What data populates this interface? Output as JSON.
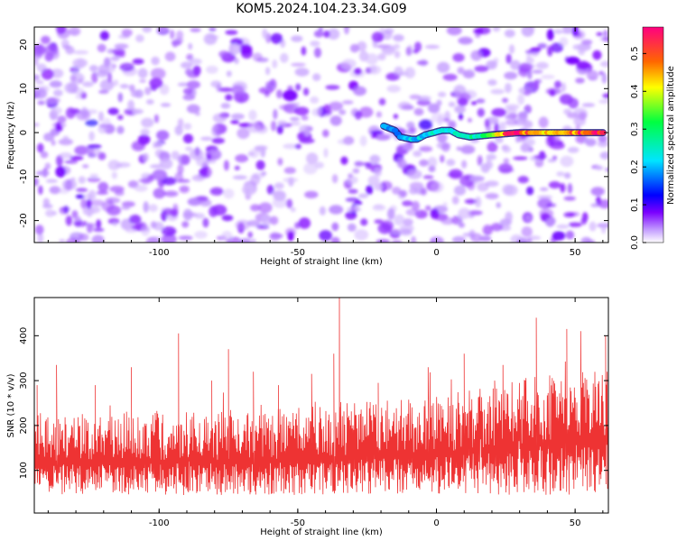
{
  "title": "KOM5.2024.104.23.34.G09",
  "chart_data": [
    {
      "type": "heatmap",
      "title": "KOM5.2024.104.23.34.G09",
      "xlabel": "Height of straight line (km)",
      "ylabel": "Frequency (Hz)",
      "xlim": [
        -145,
        62
      ],
      "ylim": [
        -25,
        24
      ],
      "x_ticks": [
        -100,
        -50,
        0,
        50
      ],
      "y_ticks": [
        -20,
        -10,
        0,
        10,
        20
      ],
      "colorbar": {
        "label": "Normalized spectral amplitude",
        "range": [
          0.0,
          0.57
        ],
        "ticks": [
          0.0,
          0.1,
          0.2,
          0.3,
          0.4,
          0.5
        ],
        "colors": [
          "#ffffff",
          "#7b00ff",
          "#0000ff",
          "#00e5ff",
          "#00ff40",
          "#ffff00",
          "#ff6600",
          "#ff0040",
          "#ff0080"
        ]
      },
      "background_level": 0.02,
      "noise_blob_level_range": [
        0.02,
        0.09
      ],
      "signal_ridge": {
        "description_points_freq_hz": [
          [
            -19,
            1.5
          ],
          [
            -15,
            0.5
          ],
          [
            -13,
            -1
          ],
          [
            -9,
            -1.5
          ],
          [
            -7,
            -1.5
          ],
          [
            -4,
            -0.5
          ],
          [
            -1,
            0
          ],
          [
            2,
            0.5
          ],
          [
            5,
            0.5
          ],
          [
            8,
            -0.5
          ],
          [
            12,
            -1
          ],
          [
            20,
            -0.5
          ],
          [
            30,
            0
          ],
          [
            40,
            0
          ],
          [
            50,
            0
          ],
          [
            60,
            0
          ]
        ],
        "amplitude_points": [
          [
            -19,
            0.18
          ],
          [
            -12,
            0.2
          ],
          [
            -5,
            0.22
          ],
          [
            3,
            0.25
          ],
          [
            10,
            0.24
          ],
          [
            20,
            0.32
          ],
          [
            26,
            0.55
          ],
          [
            35,
            0.45
          ],
          [
            45,
            0.4
          ],
          [
            52,
            0.5
          ],
          [
            58,
            0.55
          ]
        ]
      }
    },
    {
      "type": "line",
      "xlabel": "Height of straight line (km)",
      "ylabel": "SNR (10 * v/v)",
      "xlim": [
        -145,
        62
      ],
      "ylim": [
        5,
        485
      ],
      "x_ticks": [
        -100,
        -50,
        0,
        50
      ],
      "y_ticks": [
        100,
        200,
        300,
        400
      ],
      "color": "#ee3333",
      "series": [
        {
          "base_trend": [
            [
              -145,
              120
            ],
            [
              -60,
              125
            ],
            [
              0,
              140
            ],
            [
              30,
              160
            ],
            [
              62,
              175
            ]
          ],
          "typical_low": 45,
          "peaks": [
            [
              -144,
              290
            ],
            [
              -137,
              335
            ],
            [
              -123,
              290
            ],
            [
              -110,
              330
            ],
            [
              -93,
              405
            ],
            [
              -81,
              300
            ],
            [
              -75,
              370
            ],
            [
              -66,
              320
            ],
            [
              -57,
              290
            ],
            [
              -45,
              315
            ],
            [
              -37,
              360
            ],
            [
              -35,
              485
            ],
            [
              -21,
              295
            ],
            [
              -3,
              330
            ],
            [
              10,
              360
            ],
            [
              21,
              300
            ],
            [
              24,
              335
            ],
            [
              36,
              440
            ],
            [
              47,
              415
            ],
            [
              52,
              410
            ],
            [
              61,
              400
            ]
          ]
        }
      ]
    }
  ]
}
